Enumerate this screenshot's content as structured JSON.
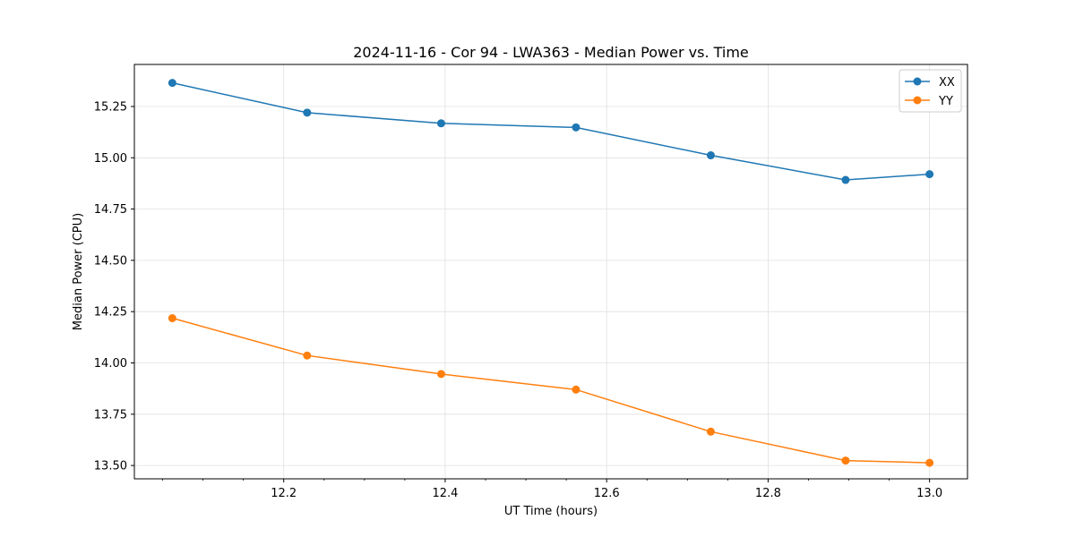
{
  "chart_data": {
    "type": "line",
    "title": "2024-11-16 - Cor 94 - LWA363 - Median Power vs. Time",
    "xlabel": "UT Time (hours)",
    "ylabel": "Median Power (CPU)",
    "xlim": [
      12.015,
      13.047
    ],
    "ylim": [
      13.435,
      15.455
    ],
    "x_ticks": [
      12.2,
      12.4,
      12.6,
      12.8,
      13.0
    ],
    "x_tick_labels": [
      "12.2",
      "12.4",
      "12.6",
      "12.8",
      "13.0"
    ],
    "x_minor_step": 0.05,
    "y_ticks": [
      13.5,
      13.75,
      14.0,
      14.25,
      14.5,
      14.75,
      15.0,
      15.25
    ],
    "y_tick_labels": [
      "13.50",
      "13.75",
      "14.00",
      "14.25",
      "14.50",
      "14.75",
      "15.00",
      "15.25"
    ],
    "grid": true,
    "legend_position": "top-right",
    "series": [
      {
        "name": "XX",
        "color": "#1f77b4",
        "x": [
          12.062,
          12.229,
          12.395,
          12.562,
          12.729,
          12.896,
          13.0
        ],
        "y": [
          15.365,
          15.22,
          15.168,
          15.148,
          15.012,
          14.892,
          14.92
        ]
      },
      {
        "name": "YY",
        "color": "#ff7f0e",
        "x": [
          12.062,
          12.229,
          12.395,
          12.562,
          12.729,
          12.896,
          13.0
        ],
        "y": [
          14.218,
          14.036,
          13.946,
          13.87,
          13.665,
          13.524,
          13.513
        ]
      }
    ]
  }
}
